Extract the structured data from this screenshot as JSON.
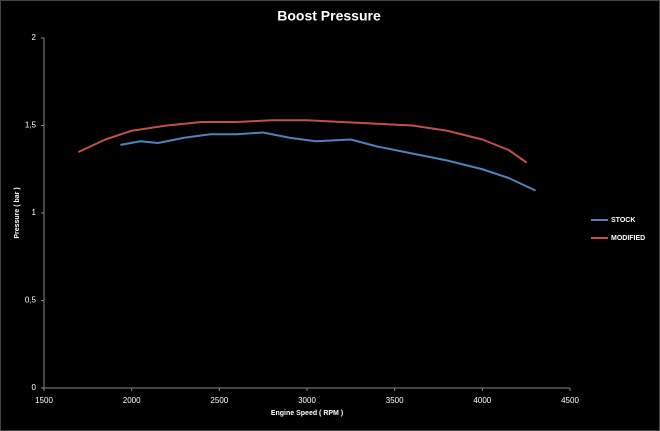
{
  "chart_data": {
    "type": "line",
    "title": "Boost Pressure",
    "x_label": "Engine Speed ( RPM )",
    "y_label": "Pressure ( bar )",
    "xlim": [
      1500,
      4500
    ],
    "xticks": [
      1500,
      2000,
      2500,
      3000,
      3500,
      4000,
      4500
    ],
    "ylim": [
      0,
      2
    ],
    "yticks": [
      0,
      {
        "value": 0.5,
        "label": "0,5"
      },
      1,
      {
        "value": 1.5,
        "label": "1,5"
      },
      2
    ],
    "grid": false,
    "legend": "right",
    "series": [
      {
        "name": "STOCK",
        "color": "#4f81bd",
        "x": [
          1940,
          2050,
          2150,
          2300,
          2450,
          2600,
          2750,
          2900,
          3050,
          3250,
          3400,
          3550,
          3800,
          4000,
          4150,
          4300
        ],
        "values": [
          1.39,
          1.41,
          1.4,
          1.43,
          1.45,
          1.45,
          1.46,
          1.43,
          1.41,
          1.42,
          1.38,
          1.35,
          1.3,
          1.25,
          1.2,
          1.13
        ]
      },
      {
        "name": "MODIFIED",
        "color": "#c0504d",
        "x": [
          1700,
          1850,
          2000,
          2200,
          2400,
          2600,
          2800,
          3000,
          3200,
          3400,
          3600,
          3800,
          4000,
          4150,
          4250
        ],
        "values": [
          1.35,
          1.42,
          1.47,
          1.5,
          1.52,
          1.52,
          1.53,
          1.53,
          1.52,
          1.51,
          1.5,
          1.47,
          1.42,
          1.36,
          1.29
        ]
      }
    ]
  }
}
